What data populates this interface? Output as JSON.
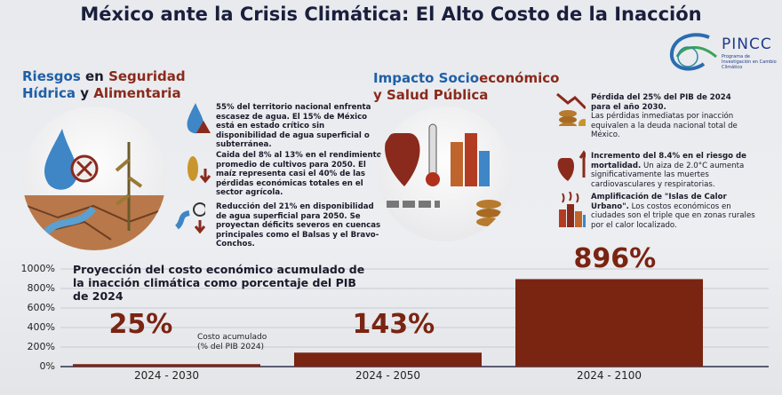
{
  "title": "México ante la Crisis Climática: El Alto Costo de la Inacción",
  "logo": {
    "name": "PINCC",
    "subtitle": "Programa de Investigación en Cambio Climático"
  },
  "left": {
    "heading_a": "Riesgos",
    "heading_b": " en ",
    "heading_c": "Seguridad",
    "heading_d": "Hídrica",
    "heading_e": " y ",
    "heading_f": "Alimentaria",
    "items": [
      {
        "icon": "water-drop-warning-icon",
        "text": "55% del territorio nacional enfrenta escasez de agua. El 15% de México está en estado crítico sin disponibilidad de agua superficial o subterránea."
      },
      {
        "icon": "corn-down-icon",
        "text": "Caida del 8% al 13% en el rendimiento promedio de cultivos para 2050. El maíz representa casi el 40% de las pérdidas económicas totales en el sector agrícola."
      },
      {
        "icon": "river-clock-icon",
        "text": "Reducción del 21% en disponibilidad de agua superficial para 2050. Se proyectan déficits severos en cuencas principales como el Balsas y el Bravo-Conchos."
      }
    ]
  },
  "middle": {
    "heading_a": "Impacto Socio",
    "heading_b": "económico",
    "heading_c": "y Salud Pública"
  },
  "right": {
    "items": [
      {
        "icon": "coins-down-icon",
        "bold": "Pérdida del 25% del PIB de 2024 para el año 2030.",
        "text": "Las pérdidas inmediatas por inacción equivalen a la deuda nacional total de México."
      },
      {
        "icon": "heart-thermometer-icon",
        "bold": "Incremento del 8.4% en el riesgo de mortalidad.",
        "text": " Un aiza de 2.0°C aumenta significativamente las muertes cardiovasculares y respiratorias."
      },
      {
        "icon": "city-heat-icon",
        "bold": "Amplificación de \"Islas de Calor Urbano\".",
        "text": " Los costos económicos en ciudades son el triple que en zonas rurales por el calor localizado."
      }
    ]
  },
  "chart_data": {
    "type": "bar",
    "title": "Proyección del costo económico acumulado de la inacción climática como porcentaje del PIB de 2024",
    "categories": [
      "2024 - 2030",
      "2024 - 2050",
      "2024 - 2100"
    ],
    "values": [
      25,
      143,
      896
    ],
    "data_labels": [
      "25%",
      "143%",
      "896%"
    ],
    "annotation": "Costo acumulado (% del PIB 2024)",
    "ylim": [
      0,
      1000
    ],
    "yticks": [
      "0%",
      "200%",
      "400%",
      "600%",
      "800%",
      "1000%"
    ],
    "grid": true,
    "bar_color": "#7a2412"
  }
}
